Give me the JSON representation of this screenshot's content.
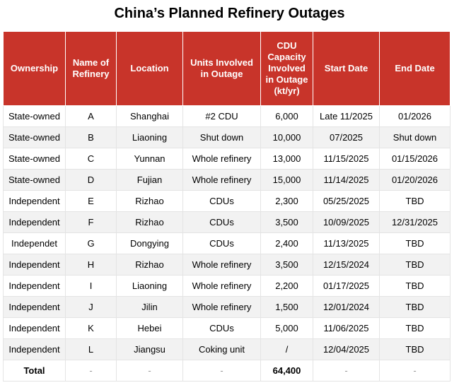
{
  "title": "China’s Planned Refinery Outages",
  "headers": [
    "Ownership",
    "Name of Refinery",
    "Location",
    "Units Involved in Outage",
    "CDU Capacity Involved in Outage (kt/yr)",
    "Start Date",
    "End Date"
  ],
  "rows": [
    [
      "State-owned",
      "A",
      "Shanghai",
      "#2 CDU",
      "6,000",
      "Late 11/2025",
      "01/2026"
    ],
    [
      "State-owned",
      "B",
      "Liaoning",
      "Shut down",
      "10,000",
      "07/2025",
      "Shut down"
    ],
    [
      "State-owned",
      "C",
      "Yunnan",
      "Whole refinery",
      "13,000",
      "11/15/2025",
      "01/15/2026"
    ],
    [
      "State-owned",
      "D",
      "Fujian",
      "Whole refinery",
      "15,000",
      "11/14/2025",
      "01/20/2026"
    ],
    [
      "Independent",
      "E",
      "Rizhao",
      "CDUs",
      "2,300",
      "05/25/2025",
      "TBD"
    ],
    [
      "Independent",
      "F",
      "Rizhao",
      "CDUs",
      "3,500",
      "10/09/2025",
      "12/31/2025"
    ],
    [
      "Independet",
      "G",
      "Dongying",
      "CDUs",
      "2,400",
      "11/13/2025",
      "TBD"
    ],
    [
      "Independent",
      "H",
      "Rizhao",
      "Whole refinery",
      "3,500",
      "12/15/2024",
      "TBD"
    ],
    [
      "Independent",
      "I",
      "Liaoning",
      "Whole refinery",
      "2,200",
      "01/17/2025",
      "TBD"
    ],
    [
      "Independent",
      "J",
      "Jilin",
      "Whole refinery",
      "1,500",
      "12/01/2024",
      "TBD"
    ],
    [
      "Independent",
      "K",
      "Hebei",
      "CDUs",
      "5,000",
      "11/06/2025",
      "TBD"
    ],
    [
      "Independent",
      "L",
      "Jiangsu",
      "Coking unit",
      "/",
      "12/04/2025",
      "TBD"
    ]
  ],
  "total": [
    "Total",
    "-",
    "-",
    "-",
    "64,400",
    "-",
    "-"
  ],
  "colors": {
    "header_bg": "#c8342a",
    "header_text": "#ffffff",
    "row_alt": "#f2f2f2"
  }
}
